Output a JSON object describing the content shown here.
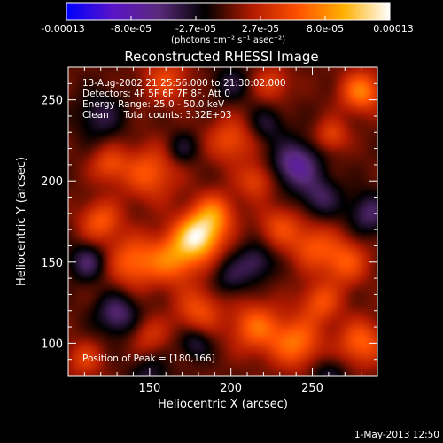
{
  "chart_data": {
    "type": "heatmap",
    "title": "Reconstructed RHESSI Image",
    "xlabel": "Heliocentric X (arcsec)",
    "ylabel": "Heliocentric Y (arcsec)",
    "xlim": [
      100,
      290
    ],
    "ylim": [
      80,
      270
    ],
    "x_ticks": [
      150,
      200,
      250
    ],
    "y_ticks": [
      100,
      150,
      200,
      250
    ],
    "colorbar": {
      "unit_label": "(photons cm⁻² s⁻¹ asec⁻²)",
      "range": [
        -0.00013,
        0.00013
      ],
      "tick_labels": [
        "-0.00013",
        "-8.0e-05",
        "-2.7e-05",
        "2.7e-05",
        "8.0e-05",
        "0.00013"
      ],
      "stops": [
        "#0000ff",
        "#5a14c8",
        "#5a2a7a",
        "#000000",
        "#b01a00",
        "#ff5000",
        "#ffb000",
        "#ffffff"
      ]
    },
    "annotations": [
      "13-Aug-2002 21:25:56.000 to 21:30:02.000",
      "Detectors: 4F 5F 6F 7F 8F, Att 0",
      "Energy Range: 25.0 - 50.0 keV",
      "Clean     Total counts: 3.32E+03"
    ],
    "peak_label": "Position of Peak = [180,166]",
    "peak": [
      180,
      166
    ],
    "sources": [
      {
        "x": 180,
        "y": 166,
        "a": 1.0,
        "s": 10
      },
      {
        "x": 190,
        "y": 180,
        "a": 0.55,
        "s": 9
      },
      {
        "x": 165,
        "y": 152,
        "a": 0.6,
        "s": 11
      },
      {
        "x": 140,
        "y": 150,
        "a": 0.55,
        "s": 11
      },
      {
        "x": 120,
        "y": 175,
        "a": 0.5,
        "s": 9
      },
      {
        "x": 150,
        "y": 205,
        "a": 0.5,
        "s": 12
      },
      {
        "x": 125,
        "y": 210,
        "a": 0.4,
        "s": 8
      },
      {
        "x": 200,
        "y": 225,
        "a": 0.45,
        "s": 10
      },
      {
        "x": 215,
        "y": 200,
        "a": 0.4,
        "s": 8
      },
      {
        "x": 230,
        "y": 172,
        "a": 0.4,
        "s": 9
      },
      {
        "x": 250,
        "y": 160,
        "a": 0.45,
        "s": 10
      },
      {
        "x": 270,
        "y": 150,
        "a": 0.5,
        "s": 10
      },
      {
        "x": 280,
        "y": 255,
        "a": 0.65,
        "s": 9
      },
      {
        "x": 262,
        "y": 228,
        "a": 0.4,
        "s": 7
      },
      {
        "x": 225,
        "y": 260,
        "a": 0.35,
        "s": 8
      },
      {
        "x": 160,
        "y": 262,
        "a": 0.4,
        "s": 10
      },
      {
        "x": 180,
        "y": 120,
        "a": 0.45,
        "s": 10
      },
      {
        "x": 215,
        "y": 110,
        "a": 0.55,
        "s": 11
      },
      {
        "x": 240,
        "y": 100,
        "a": 0.6,
        "s": 11
      },
      {
        "x": 280,
        "y": 100,
        "a": 0.55,
        "s": 10
      },
      {
        "x": 255,
        "y": 125,
        "a": 0.45,
        "s": 9
      },
      {
        "x": 150,
        "y": 105,
        "a": 0.3,
        "s": 8
      },
      {
        "x": 110,
        "y": 90,
        "a": 0.35,
        "s": 8
      },
      {
        "x": 120,
        "y": 240,
        "a": -0.35,
        "s": 10
      },
      {
        "x": 112,
        "y": 150,
        "a": -0.45,
        "s": 8
      },
      {
        "x": 130,
        "y": 118,
        "a": -0.5,
        "s": 9
      },
      {
        "x": 178,
        "y": 100,
        "a": -0.35,
        "s": 7
      },
      {
        "x": 200,
        "y": 140,
        "a": -0.3,
        "s": 8
      },
      {
        "x": 215,
        "y": 150,
        "a": -0.4,
        "s": 8
      },
      {
        "x": 240,
        "y": 210,
        "a": -0.65,
        "s": 10
      },
      {
        "x": 255,
        "y": 190,
        "a": -0.4,
        "s": 9
      },
      {
        "x": 285,
        "y": 180,
        "a": -0.45,
        "s": 9
      },
      {
        "x": 222,
        "y": 235,
        "a": -0.3,
        "s": 8
      },
      {
        "x": 200,
        "y": 260,
        "a": -0.3,
        "s": 8
      },
      {
        "x": 170,
        "y": 220,
        "a": -0.3,
        "s": 7
      },
      {
        "x": 150,
        "y": 80,
        "a": -0.3,
        "s": 8
      },
      {
        "x": 260,
        "y": 80,
        "a": -0.3,
        "s": 8
      }
    ]
  },
  "footer": {
    "timestamp": "1-May-2013 12:50"
  }
}
